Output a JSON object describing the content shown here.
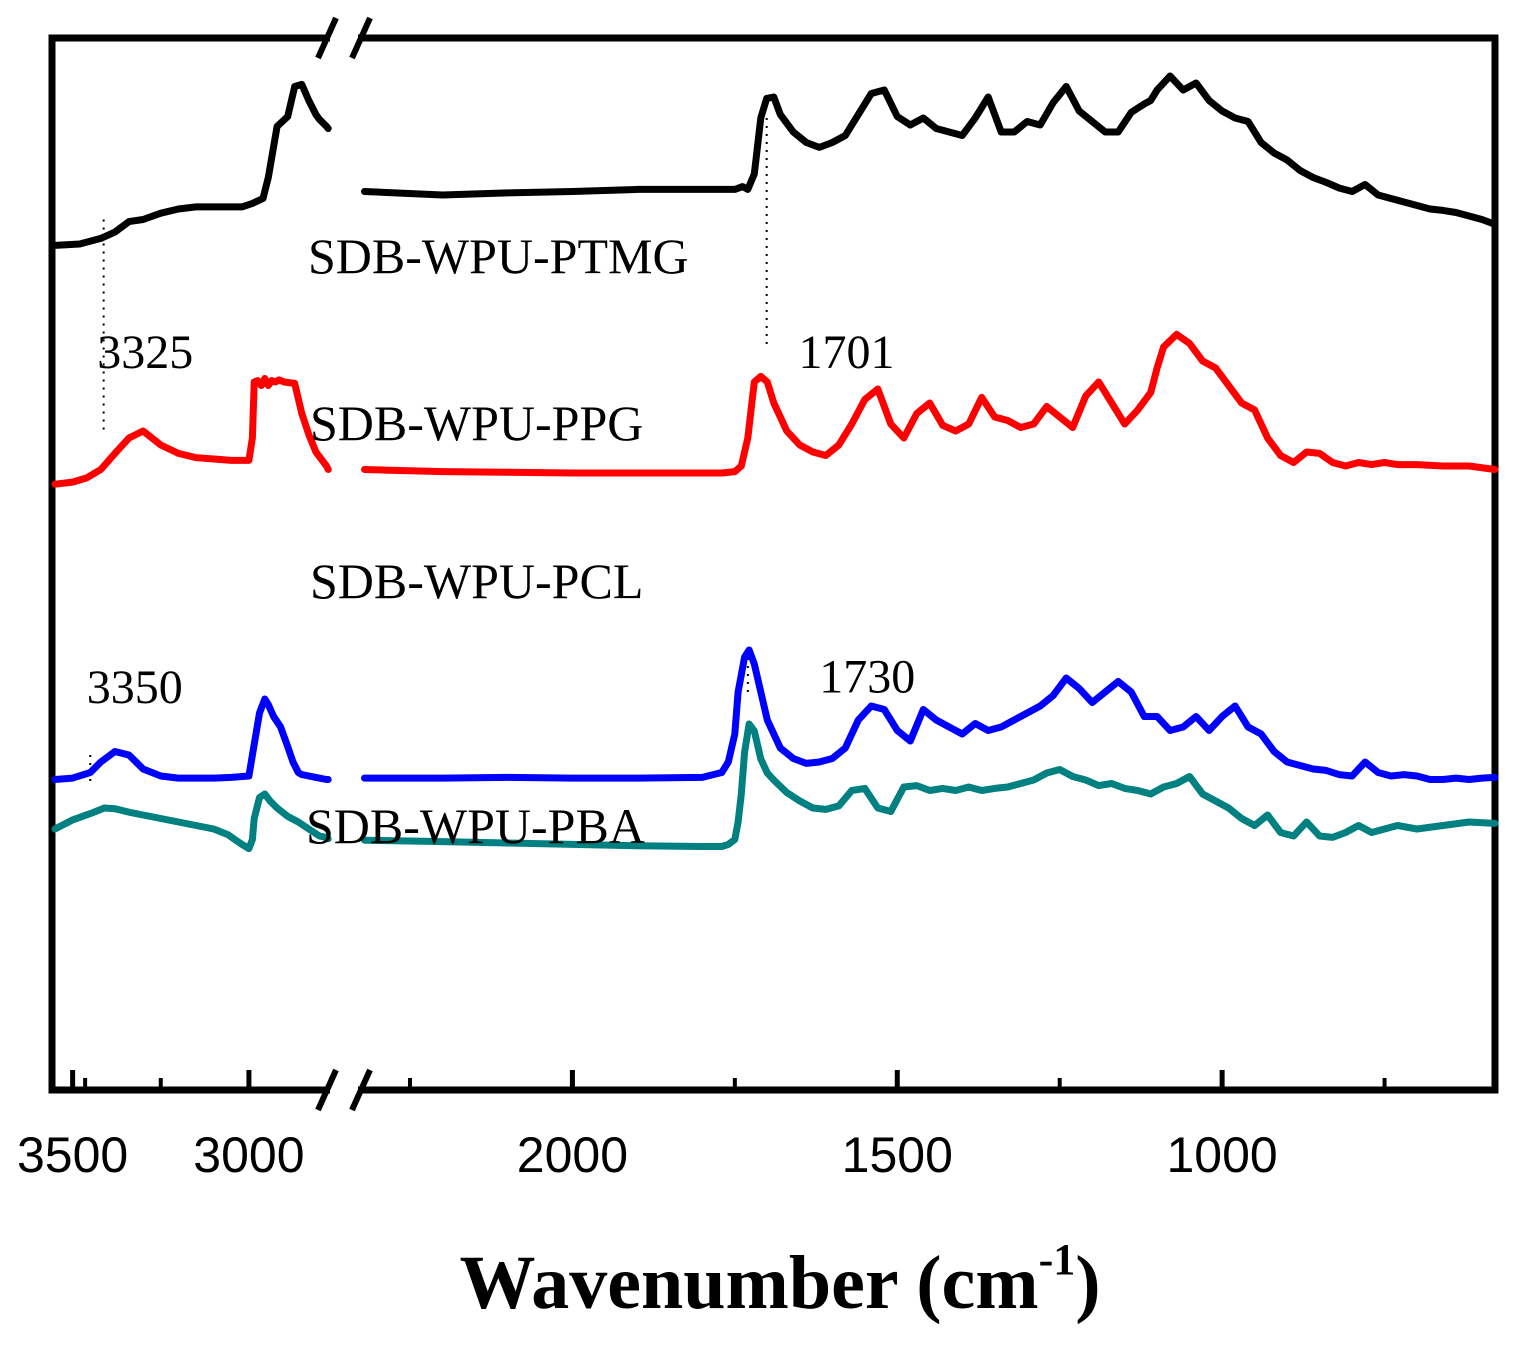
{
  "chart_data": {
    "type": "line",
    "title": "",
    "xlabel": "Wavenumber (cm",
    "xlabel_superscript": "-1",
    "xlabel_suffix": ")",
    "ylabel": "",
    "x_reversed": true,
    "axis_break": {
      "from": 2770,
      "to": 2330
    },
    "xlim_left": [
      3550,
      2770
    ],
    "xlim_right": [
      2330,
      580
    ],
    "ticks": [
      {
        "value": 3500,
        "label": "3500"
      },
      {
        "value": 3000,
        "label": "3000"
      },
      {
        "value": 2000,
        "label": "2000"
      },
      {
        "value": 1500,
        "label": "1500"
      },
      {
        "value": 1000,
        "label": "1000"
      }
    ],
    "minor_ticks": [
      3250,
      2750,
      2250,
      1750,
      1250,
      750
    ],
    "series": [
      {
        "name": "SDB-WPU-PTMG",
        "color": "#000000",
        "x": [
          3550,
          3480,
          3420,
          3380,
          3340,
          3300,
          3250,
          3200,
          3150,
          3080,
          3050,
          3020,
          2990,
          2960,
          2945,
          2920,
          2890,
          2870,
          2850,
          2830,
          2810,
          2800,
          2780,
          2775,
          2320,
          2200,
          2100,
          2000,
          1900,
          1800,
          1750,
          1738,
          1730,
          1720,
          1710,
          1701,
          1690,
          1680,
          1660,
          1640,
          1620,
          1600,
          1580,
          1560,
          1540,
          1520,
          1500,
          1480,
          1460,
          1440,
          1420,
          1400,
          1380,
          1360,
          1340,
          1320,
          1300,
          1280,
          1260,
          1240,
          1220,
          1200,
          1180,
          1160,
          1140,
          1120,
          1110,
          1100,
          1080,
          1060,
          1040,
          1020,
          1000,
          980,
          960,
          940,
          920,
          900,
          880,
          860,
          840,
          820,
          800,
          780,
          760,
          740,
          720,
          700,
          680,
          660,
          640,
          620,
          600,
          580
        ],
        "y": [
          78,
          80,
          88,
          97,
          112,
          115,
          124,
          130,
          133,
          133,
          133,
          133,
          138,
          145,
          175,
          248,
          262,
          305,
          308,
          285,
          265,
          258,
          248,
          245,
          155,
          150,
          153,
          155,
          158,
          158,
          158,
          162,
          158,
          180,
          260,
          288,
          290,
          265,
          240,
          225,
          218,
          225,
          235,
          265,
          295,
          300,
          262,
          250,
          260,
          245,
          240,
          235,
          260,
          290,
          240,
          240,
          255,
          250,
          282,
          305,
          270,
          255,
          240,
          240,
          268,
          280,
          285,
          300,
          320,
          300,
          310,
          285,
          270,
          260,
          255,
          225,
          210,
          200,
          185,
          175,
          168,
          160,
          155,
          165,
          150,
          145,
          140,
          135,
          130,
          128,
          125,
          120,
          115,
          108
        ],
        "label_value_x": 2770,
        "label_value_y": 236
      },
      {
        "name": "SDB-WPU-PPG",
        "color": "#ff0000",
        "x": [
          3550,
          3500,
          3460,
          3420,
          3380,
          3340,
          3300,
          3250,
          3200,
          3150,
          3100,
          3050,
          3000,
          2990,
          2985,
          2975,
          2965,
          2955,
          2945,
          2935,
          2925,
          2915,
          2900,
          2870,
          2850,
          2830,
          2810,
          2780,
          2775,
          2320,
          2200,
          2100,
          2000,
          1900,
          1800,
          1770,
          1750,
          1740,
          1730,
          1720,
          1710,
          1700,
          1690,
          1670,
          1650,
          1630,
          1610,
          1590,
          1570,
          1550,
          1530,
          1510,
          1490,
          1470,
          1450,
          1430,
          1410,
          1390,
          1370,
          1350,
          1330,
          1310,
          1290,
          1270,
          1250,
          1230,
          1210,
          1190,
          1170,
          1150,
          1130,
          1110,
          1100,
          1090,
          1070,
          1050,
          1030,
          1010,
          990,
          970,
          950,
          930,
          910,
          890,
          870,
          850,
          830,
          810,
          790,
          770,
          750,
          730,
          700,
          660,
          620,
          580
        ],
        "y": [
          -6,
          -3,
          3,
          15,
          38,
          60,
          70,
          50,
          38,
          32,
          30,
          28,
          28,
          60,
          140,
          142,
          135,
          145,
          135,
          142,
          140,
          143,
          140,
          138,
          95,
          65,
          40,
          20,
          15,
          15,
          12,
          11,
          10,
          10,
          10,
          10,
          12,
          20,
          60,
          140,
          148,
          140,
          110,
          70,
          50,
          40,
          35,
          50,
          80,
          115,
          130,
          80,
          60,
          95,
          110,
          78,
          70,
          80,
          118,
          90,
          85,
          75,
          80,
          105,
          90,
          75,
          120,
          140,
          110,
          80,
          100,
          125,
          160,
          190,
          208,
          195,
          170,
          160,
          135,
          110,
          100,
          60,
          35,
          25,
          40,
          38,
          25,
          20,
          25,
          22,
          25,
          22,
          22,
          20,
          20,
          15
        ],
        "label_value_x": 2770,
        "label_value_y": 79
      },
      {
        "name": "SDB-WPU-PCL",
        "color": "#0000ff",
        "x": [
          3550,
          3500,
          3450,
          3420,
          3380,
          3340,
          3300,
          3250,
          3200,
          3150,
          3100,
          3050,
          3000,
          2990,
          2970,
          2955,
          2945,
          2930,
          2910,
          2890,
          2875,
          2860,
          2850,
          2830,
          2810,
          2780,
          2775,
          2320,
          2200,
          2100,
          2000,
          1900,
          1800,
          1770,
          1760,
          1750,
          1745,
          1735,
          1728,
          1720,
          1710,
          1700,
          1680,
          1660,
          1640,
          1620,
          1600,
          1580,
          1560,
          1540,
          1520,
          1500,
          1480,
          1460,
          1440,
          1420,
          1400,
          1380,
          1360,
          1340,
          1320,
          1300,
          1280,
          1260,
          1240,
          1220,
          1200,
          1180,
          1160,
          1140,
          1120,
          1100,
          1080,
          1060,
          1040,
          1020,
          1000,
          980,
          960,
          940,
          920,
          900,
          880,
          860,
          840,
          820,
          800,
          780,
          760,
          740,
          720,
          700,
          680,
          660,
          640,
          620,
          600,
          580
        ],
        "y": [
          -185,
          -183,
          -175,
          -160,
          -145,
          -150,
          -170,
          -180,
          -183,
          -183,
          -183,
          -182,
          -180,
          -150,
          -90,
          -70,
          -78,
          -95,
          -110,
          -138,
          -160,
          -175,
          -178,
          -180,
          -182,
          -185,
          -185,
          -183,
          -183,
          -182,
          -183,
          -183,
          -182,
          -175,
          -160,
          -120,
          -60,
          -10,
          0,
          -20,
          -60,
          -100,
          -140,
          -155,
          -162,
          -160,
          -155,
          -140,
          -100,
          -80,
          -85,
          -115,
          -130,
          -85,
          -100,
          -110,
          -120,
          -105,
          -115,
          -110,
          -100,
          -90,
          -80,
          -65,
          -40,
          -55,
          -75,
          -60,
          -45,
          -60,
          -95,
          -95,
          -115,
          -110,
          -95,
          -115,
          -95,
          -80,
          -110,
          -120,
          -145,
          -160,
          -165,
          -170,
          -172,
          -178,
          -180,
          -160,
          -175,
          -180,
          -178,
          -180,
          -185,
          -185,
          -183,
          -185,
          -183,
          -182
        ],
        "label_value_x": 2770,
        "label_value_y": -113
      },
      {
        "name": "SDB-WPU-PBA",
        "color": "#008080",
        "x": [
          3550,
          3500,
          3450,
          3410,
          3380,
          3340,
          3300,
          3250,
          3200,
          3150,
          3100,
          3060,
          3040,
          3020,
          3000,
          2990,
          2985,
          2970,
          2955,
          2940,
          2920,
          2890,
          2860,
          2830,
          2800,
          2780,
          2775,
          2320,
          2200,
          2100,
          2000,
          1900,
          1800,
          1770,
          1760,
          1750,
          1745,
          1740,
          1735,
          1728,
          1720,
          1710,
          1700,
          1690,
          1670,
          1650,
          1630,
          1610,
          1590,
          1570,
          1550,
          1530,
          1510,
          1490,
          1470,
          1450,
          1430,
          1410,
          1390,
          1370,
          1350,
          1330,
          1310,
          1290,
          1270,
          1250,
          1230,
          1210,
          1190,
          1170,
          1150,
          1130,
          1110,
          1090,
          1070,
          1050,
          1030,
          1010,
          990,
          970,
          950,
          930,
          910,
          890,
          870,
          850,
          830,
          810,
          790,
          770,
          750,
          730,
          700,
          660,
          620,
          580
        ],
        "y": [
          30,
          43,
          52,
          60,
          59,
          54,
          50,
          45,
          40,
          35,
          30,
          22,
          15,
          8,
          2,
          15,
          45,
          75,
          80,
          70,
          60,
          48,
          40,
          30,
          20,
          18,
          16,
          14,
          12,
          10,
          8,
          6,
          5,
          5,
          8,
          15,
          40,
          80,
          140,
          180,
          170,
          130,
          110,
          100,
          82,
          70,
          60,
          58,
          63,
          85,
          88,
          60,
          55,
          90,
          92,
          85,
          88,
          85,
          90,
          85,
          88,
          90,
          95,
          100,
          110,
          115,
          105,
          100,
          92,
          95,
          88,
          85,
          80,
          90,
          95,
          105,
          80,
          70,
          60,
          45,
          35,
          50,
          25,
          20,
          40,
          20,
          18,
          25,
          35,
          25,
          30,
          35,
          30,
          35,
          40,
          38
        ],
        "label_value_x": 2770,
        "label_value_y": 56
      }
    ],
    "annotations": [
      {
        "text": "3325",
        "x": 3430,
        "series_index": 1,
        "value_y": 160
      },
      {
        "text": "1701",
        "x": 1652,
        "series_index": 1,
        "value_y": 160
      },
      {
        "text": "3350",
        "x": 3460,
        "series_index": 3,
        "value_y": 210
      },
      {
        "text": "1730",
        "x": 1620,
        "series_index": 3,
        "value_y": 225
      }
    ],
    "guide_lines": [
      {
        "x": 3412,
        "from_series": 0,
        "from_value": 115,
        "to_series": 1,
        "to_value": 70
      },
      {
        "x": 1701,
        "from_series": 0,
        "from_value": 260,
        "to_series": 1,
        "to_value": 190
      },
      {
        "x": 3450,
        "from_series": 2,
        "from_value": -150,
        "to_series": 3,
        "to_value": 90
      },
      {
        "x": 1730,
        "from_series": 2,
        "from_value": 0,
        "to_series": 3,
        "to_value": 220
      }
    ]
  }
}
